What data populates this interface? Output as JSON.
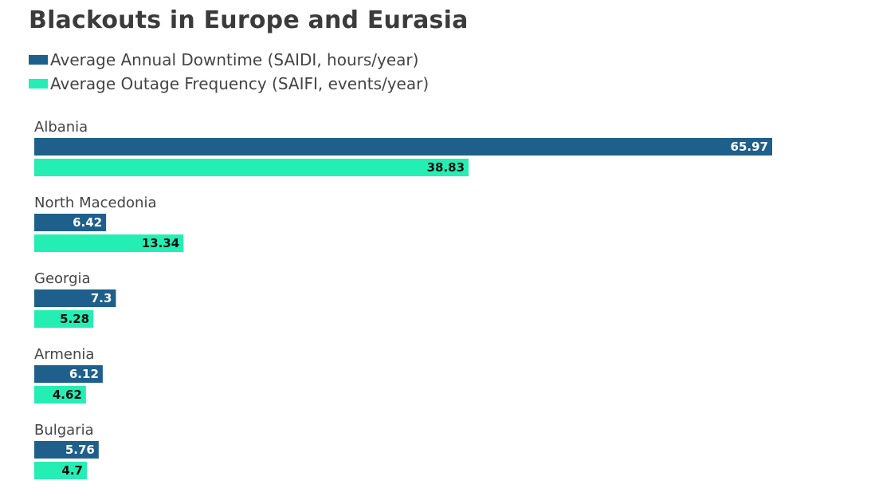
{
  "chart_data": {
    "type": "bar",
    "orientation": "horizontal",
    "title": "Blackouts in Europe and Eurasia",
    "categories": [
      "Albania",
      "North Macedonia",
      "Georgia",
      "Armenia",
      "Bulgaria"
    ],
    "series": [
      {
        "name": "Average Annual Downtime (SAIDI, hours/year)",
        "color": "#1f5f8b",
        "label_color": "#ffffff",
        "values": [
          65.97,
          6.42,
          7.3,
          6.12,
          5.76
        ],
        "labels": [
          "65.97",
          "6.42",
          "7.3",
          "6.12",
          "5.76"
        ]
      },
      {
        "name": "Average Outage Frequency (SAIFI, events/year)",
        "color": "#25eeb4",
        "label_color": "#111111",
        "values": [
          38.83,
          13.34,
          5.28,
          4.62,
          4.7
        ],
        "labels": [
          "38.83",
          "13.34",
          "5.28",
          "4.62",
          "4.7"
        ]
      }
    ],
    "xlim": [
      0,
      65.97
    ],
    "grid": false,
    "legend_position": "top-left"
  }
}
